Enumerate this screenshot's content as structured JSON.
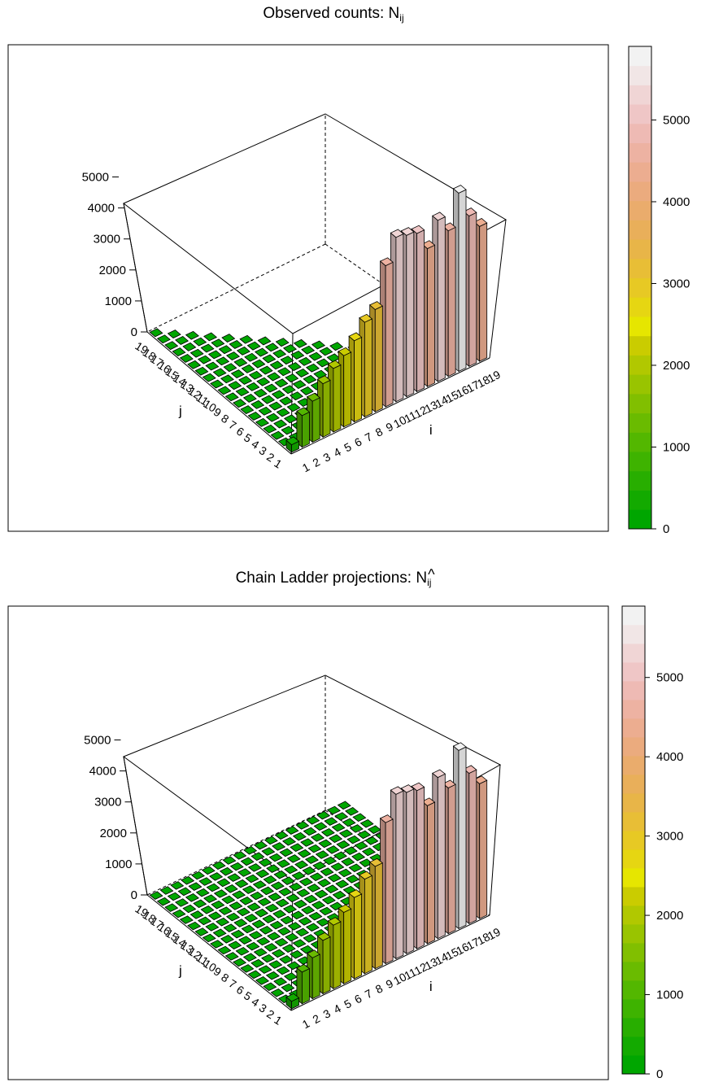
{
  "chart_data": [
    {
      "type": "bar3d",
      "title_main": "Observed counts: N",
      "title_sub": "ij",
      "title_hat": false,
      "row_axis_label": "i",
      "col_axis_label": "j",
      "z_ticks": [
        "0",
        "1000",
        "2000",
        "3000",
        "4000",
        "5000"
      ],
      "colorbar_ticks": [
        "0",
        "1000",
        "2000",
        "3000",
        "4000",
        "5000"
      ],
      "colorbar_range": [
        0,
        5900
      ],
      "zlim": [
        0,
        5900
      ],
      "row_tick_labels": [
        "1",
        "2",
        "3",
        "4",
        "5",
        "6",
        "7",
        "8",
        "9",
        "10",
        "11",
        "12",
        "13",
        "14",
        "15",
        "16",
        "17",
        "18",
        "19"
      ],
      "col_tick_labels": [
        "1",
        "2",
        "3",
        "4",
        "5",
        "6",
        "7",
        "8",
        "9",
        "10",
        "11",
        "12",
        "13",
        "14",
        "15",
        "16",
        "17",
        "18",
        "19"
      ],
      "triangle": "observed",
      "first_column_values": [
        240,
        1020,
        1320,
        1720,
        2050,
        2300,
        2620,
        3050,
        3300,
        4550,
        5300,
        5200,
        5100,
        4450,
        5200,
        4700,
        5750,
        4850,
        4350
      ],
      "colors": [
        "#00A600",
        "#13AA00",
        "#28AE00",
        "#3EB300",
        "#53B700",
        "#6ABB00",
        "#81BF00",
        "#99C400",
        "#B1C800",
        "#CACC00",
        "#E6E600",
        "#E6D612",
        "#E7C924",
        "#E8BE36",
        "#E8B548",
        "#E9AF5A",
        "#EAAC6C",
        "#EBAB7E",
        "#ECAD90",
        "#EDB2A2",
        "#EEBAB4",
        "#EFC6C6",
        "#F0D5D5",
        "#F1E6E6",
        "#F2F2F2"
      ]
    },
    {
      "type": "bar3d",
      "title_main": "Chain Ladder projections: N",
      "title_sub": "ij",
      "title_hat": true,
      "row_axis_label": "i",
      "col_axis_label": "j",
      "z_ticks": [
        "0",
        "1000",
        "2000",
        "3000",
        "4000",
        "5000"
      ],
      "colorbar_ticks": [
        "0",
        "1000",
        "2000",
        "3000",
        "4000",
        "5000"
      ],
      "colorbar_range": [
        0,
        5900
      ],
      "zlim": [
        0,
        5900
      ],
      "row_tick_labels": [
        "1",
        "2",
        "3",
        "4",
        "5",
        "6",
        "7",
        "8",
        "9",
        "10",
        "11",
        "12",
        "13",
        "14",
        "15",
        "16",
        "17",
        "18",
        "19"
      ],
      "col_tick_labels": [
        "1",
        "2",
        "3",
        "4",
        "5",
        "6",
        "7",
        "8",
        "9",
        "10",
        "11",
        "12",
        "13",
        "14",
        "15",
        "16",
        "17",
        "18",
        "19"
      ],
      "triangle": "full",
      "first_column_values": [
        240,
        1020,
        1320,
        1720,
        2050,
        2300,
        2620,
        3050,
        3300,
        4550,
        5300,
        5200,
        5100,
        4450,
        5200,
        4700,
        5750,
        4850,
        4350
      ],
      "colors": [
        "#00A600",
        "#13AA00",
        "#28AE00",
        "#3EB300",
        "#53B700",
        "#6ABB00",
        "#81BF00",
        "#99C400",
        "#B1C800",
        "#CACC00",
        "#E6E600",
        "#E6D612",
        "#E7C924",
        "#E8BE36",
        "#E8B548",
        "#E9AF5A",
        "#EAAC6C",
        "#EBAB7E",
        "#ECAD90",
        "#EDB2A2",
        "#EEBAB4",
        "#EFC6C6",
        "#F0D5D5",
        "#F1E6E6",
        "#F2F2F2"
      ]
    }
  ]
}
